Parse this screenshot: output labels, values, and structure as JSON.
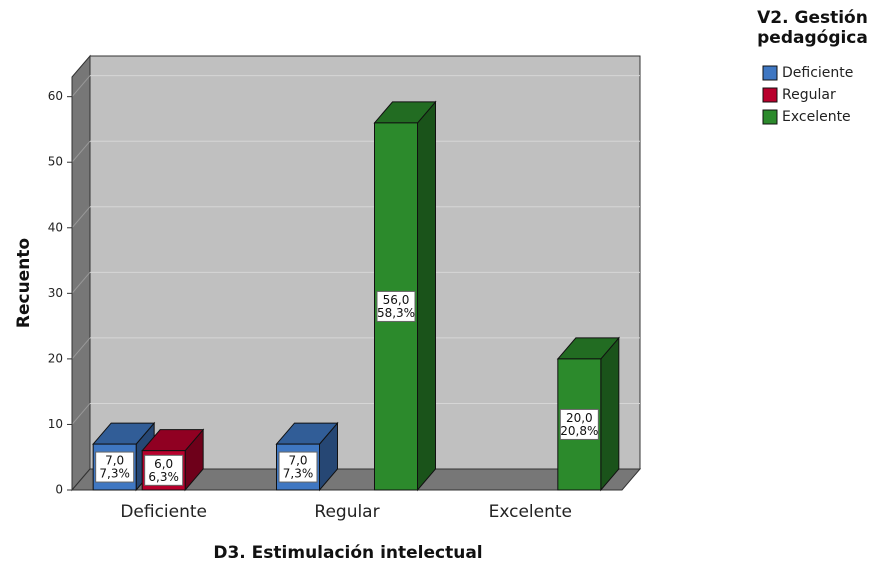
{
  "chart_data": {
    "type": "bar3d",
    "x_label": "D3. Estimulación intelectual",
    "y_label": "Recuento",
    "legend_title": "V2. Gestión pedagógica",
    "categories": [
      "Deficiente",
      "Regular",
      "Excelente"
    ],
    "ylim": [
      0,
      63
    ],
    "yticks": [
      0,
      10,
      20,
      30,
      40,
      50,
      60
    ],
    "grid": true,
    "legend": "right",
    "series": [
      {
        "name": "Deficiente",
        "color": "#3f77c2",
        "values": [
          7,
          7,
          null
        ],
        "value_labels": [
          "7,0",
          "7,0",
          null
        ],
        "percents": [
          7.3,
          7.3,
          null
        ],
        "percent_labels": [
          "7,3%",
          "7,3%",
          null
        ]
      },
      {
        "name": "Regular",
        "color": "#b8002c",
        "values": [
          6,
          null,
          null
        ],
        "value_labels": [
          "6,0",
          null,
          null
        ],
        "percents": [
          6.3,
          null,
          null
        ],
        "percent_labels": [
          "6,3%",
          null,
          null
        ]
      },
      {
        "name": "Excelente",
        "color": "#2c8a2c",
        "values": [
          null,
          56,
          20
        ],
        "value_labels": [
          null,
          "56,0",
          "20,0"
        ],
        "percents": [
          null,
          58.3,
          20.8
        ],
        "percent_labels": [
          null,
          "58,3%",
          "20,8%"
        ]
      }
    ]
  }
}
